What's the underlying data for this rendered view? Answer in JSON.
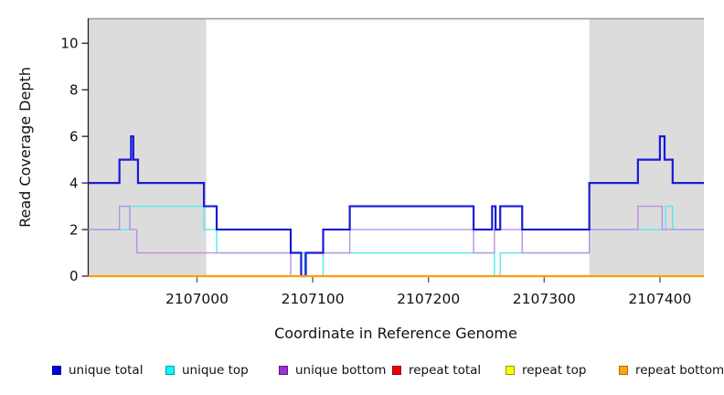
{
  "chart_data": {
    "type": "line",
    "title": "",
    "xlabel": "Coordinate in Reference Genome",
    "ylabel": "Read Coverage Depth",
    "xlim": [
      2106906,
      2107438
    ],
    "ylim": [
      0,
      11.07
    ],
    "x_ticks": [
      2107000,
      2107100,
      2107200,
      2107300,
      2107400
    ],
    "y_ticks": [
      0,
      2,
      4,
      6,
      8,
      10
    ],
    "grid": false,
    "legend_position": "bottom",
    "shade_color": "#dcdcdc",
    "frame_top_color": "#979797",
    "axis_color": "#222222",
    "x_tick_color": "#555555",
    "shaded_regions": [
      {
        "name": "masked-region-left",
        "x0": 2106906,
        "x1": 2107008
      },
      {
        "name": "masked-region-right",
        "x0": 2107339,
        "x1": 2107438
      }
    ],
    "series": [
      {
        "name": "repeat total",
        "color": "#d40000",
        "width": 1.4,
        "steps": [
          [
            2106906,
            0
          ]
        ]
      },
      {
        "name": "repeat top",
        "color": "#f0f000",
        "width": 1.4,
        "steps": [
          [
            2106906,
            0
          ]
        ]
      },
      {
        "name": "unique top",
        "color": "#55e8e8",
        "width": 1.4,
        "steps": [
          [
            2106906,
            2
          ],
          [
            2106942,
            3
          ],
          [
            2107006,
            2
          ],
          [
            2107017,
            1
          ],
          [
            2107093,
            0
          ],
          [
            2107109,
            1
          ],
          [
            2107257,
            0
          ],
          [
            2107262,
            1
          ],
          [
            2107339,
            2
          ],
          [
            2107405,
            3
          ],
          [
            2107411,
            2
          ]
        ]
      },
      {
        "name": "unique bottom",
        "color": "#b990e6",
        "width": 1.4,
        "steps": [
          [
            2106906,
            2
          ],
          [
            2106933,
            3
          ],
          [
            2106942,
            2
          ],
          [
            2106948,
            1
          ],
          [
            2107081,
            0
          ],
          [
            2107094,
            1
          ],
          [
            2107132,
            2
          ],
          [
            2107239,
            1
          ],
          [
            2107257,
            2
          ],
          [
            2107281,
            1
          ],
          [
            2107339,
            2
          ],
          [
            2107381,
            3
          ],
          [
            2107402,
            2
          ]
        ]
      },
      {
        "name": "unique total",
        "color": "#1a1ad9",
        "width": 2.2,
        "steps": [
          [
            2106906,
            4
          ],
          [
            2106933,
            5
          ],
          [
            2106943,
            6
          ],
          [
            2106945,
            5
          ],
          [
            2106949,
            4
          ],
          [
            2107006,
            3
          ],
          [
            2107017,
            2
          ],
          [
            2107081,
            1
          ],
          [
            2107090,
            0
          ],
          [
            2107094,
            1
          ],
          [
            2107109,
            2
          ],
          [
            2107132,
            3
          ],
          [
            2107239,
            2
          ],
          [
            2107255,
            3
          ],
          [
            2107258,
            2
          ],
          [
            2107262,
            3
          ],
          [
            2107281,
            2
          ],
          [
            2107339,
            4
          ],
          [
            2107381,
            5
          ],
          [
            2107400,
            6
          ],
          [
            2107404,
            5
          ],
          [
            2107411,
            4
          ]
        ]
      },
      {
        "name": "repeat bottom",
        "color": "#ff9d0c",
        "width": 2.2,
        "steps": [
          [
            2106906,
            0
          ]
        ]
      }
    ],
    "legend": [
      {
        "label": "unique total",
        "fill": "#0000dd",
        "border": "#000099"
      },
      {
        "label": "unique top",
        "fill": "#00ffff",
        "border": "#009999"
      },
      {
        "label": "unique bottom",
        "fill": "#9b30d6",
        "border": "#5c1a80"
      },
      {
        "label": "repeat total",
        "fill": "#ee0000",
        "border": "#990000"
      },
      {
        "label": "repeat top",
        "fill": "#ffff00",
        "border": "#999900"
      },
      {
        "label": "repeat bottom",
        "fill": "#ffa510",
        "border": "#b36b00"
      }
    ]
  }
}
